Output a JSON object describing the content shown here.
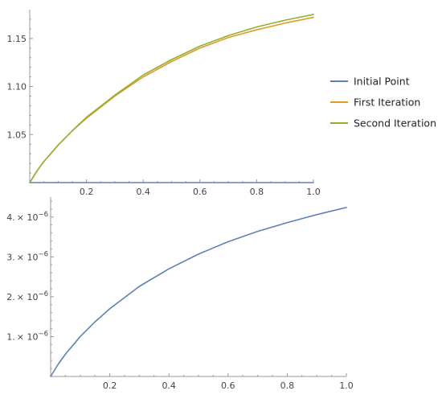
{
  "chart_data": [
    {
      "type": "line",
      "xlim": [
        0,
        1
      ],
      "ylim": [
        1.0,
        1.18
      ],
      "x_ticks": [
        {
          "value": 0.2,
          "label": "0.2"
        },
        {
          "value": 0.4,
          "label": "0.4"
        },
        {
          "value": 0.6,
          "label": "0.6"
        },
        {
          "value": 0.8,
          "label": "0.8"
        },
        {
          "value": 1.0,
          "label": "1.0"
        }
      ],
      "y_ticks": [
        {
          "value": 1.05,
          "label": "1.05"
        },
        {
          "value": 1.1,
          "label": "1.10"
        },
        {
          "value": 1.15,
          "label": "1.15"
        }
      ],
      "legend_position": "right",
      "series": [
        {
          "name": "Initial Point",
          "color": "#5e81b5",
          "x": [
            0,
            0.1,
            0.2,
            0.3,
            0.4,
            0.5,
            0.6,
            0.7,
            0.8,
            0.9,
            1.0
          ],
          "y": [
            1.0,
            1.0,
            1.0,
            1.0,
            1.0,
            1.0,
            1.0,
            1.0,
            1.0,
            1.0,
            1.0
          ]
        },
        {
          "name": "First Iteration",
          "color": "#e19c24",
          "x": [
            0,
            0.025,
            0.05,
            0.1,
            0.15,
            0.2,
            0.3,
            0.4,
            0.5,
            0.6,
            0.7,
            0.8,
            0.9,
            1.0
          ],
          "y": [
            1.0,
            1.012,
            1.022,
            1.039,
            1.054,
            1.067,
            1.09,
            1.11,
            1.126,
            1.14,
            1.151,
            1.159,
            1.166,
            1.172
          ]
        },
        {
          "name": "Second Iteration",
          "color": "#8fb032",
          "x": [
            0,
            0.025,
            0.05,
            0.1,
            0.15,
            0.2,
            0.3,
            0.4,
            0.5,
            0.6,
            0.7,
            0.8,
            0.9,
            1.0
          ],
          "y": [
            1.0,
            1.012,
            1.022,
            1.039,
            1.054,
            1.068,
            1.091,
            1.112,
            1.128,
            1.142,
            1.153,
            1.162,
            1.169,
            1.175
          ]
        }
      ]
    },
    {
      "type": "line",
      "xlim": [
        0,
        1
      ],
      "ylim": [
        0,
        4.5e-06
      ],
      "x_ticks": [
        {
          "value": 0.2,
          "label": "0.2"
        },
        {
          "value": 0.4,
          "label": "0.4"
        },
        {
          "value": 0.6,
          "label": "0.6"
        },
        {
          "value": 0.8,
          "label": "0.8"
        },
        {
          "value": 1.0,
          "label": "1.0"
        }
      ],
      "y_ticks": [
        {
          "value": 1e-06,
          "mantissa": "1.",
          "base": "× 10",
          "exponent": "−6"
        },
        {
          "value": 2e-06,
          "mantissa": "2.",
          "base": "× 10",
          "exponent": "−6"
        },
        {
          "value": 3e-06,
          "mantissa": "3.",
          "base": "× 10",
          "exponent": "−6"
        },
        {
          "value": 4e-06,
          "mantissa": "4.",
          "base": "× 10",
          "exponent": "−6"
        }
      ],
      "series": [
        {
          "color": "#5e81b5",
          "x": [
            0,
            0.025,
            0.05,
            0.1,
            0.15,
            0.2,
            0.3,
            0.4,
            0.5,
            0.6,
            0.7,
            0.8,
            0.9,
            1.0
          ],
          "y": [
            0,
            3e-07,
            5.6e-07,
            1e-06,
            1.37e-06,
            1.7e-06,
            2.26e-06,
            2.7e-06,
            3.07e-06,
            3.38e-06,
            3.64e-06,
            3.86e-06,
            4.06e-06,
            4.24e-06
          ]
        }
      ]
    }
  ]
}
